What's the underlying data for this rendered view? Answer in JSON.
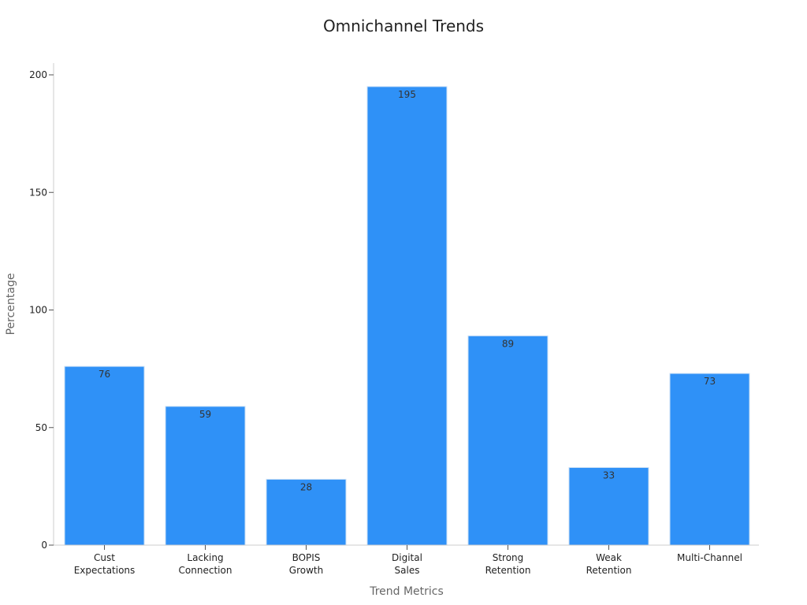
{
  "chart_data": {
    "type": "bar",
    "title": "Omnichannel Trends",
    "xlabel": "Trend Metrics",
    "ylabel": "Percentage",
    "categories": [
      [
        "Cust",
        "Expectations"
      ],
      [
        "Lacking",
        "Connection"
      ],
      [
        "BOPIS",
        "Growth"
      ],
      [
        "Digital",
        "Sales"
      ],
      [
        "Strong",
        "Retention"
      ],
      [
        "Weak",
        "Retention"
      ],
      [
        "Multi-Channel"
      ]
    ],
    "values": [
      76,
      59,
      28,
      195,
      89,
      33,
      73
    ],
    "ylim": [
      0,
      205
    ],
    "yticks": [
      0,
      50,
      100,
      150,
      200
    ],
    "grid": false,
    "bar_color": "#2f91f7",
    "bar_edge_color": "#c9dff5",
    "show_data_labels": true
  }
}
